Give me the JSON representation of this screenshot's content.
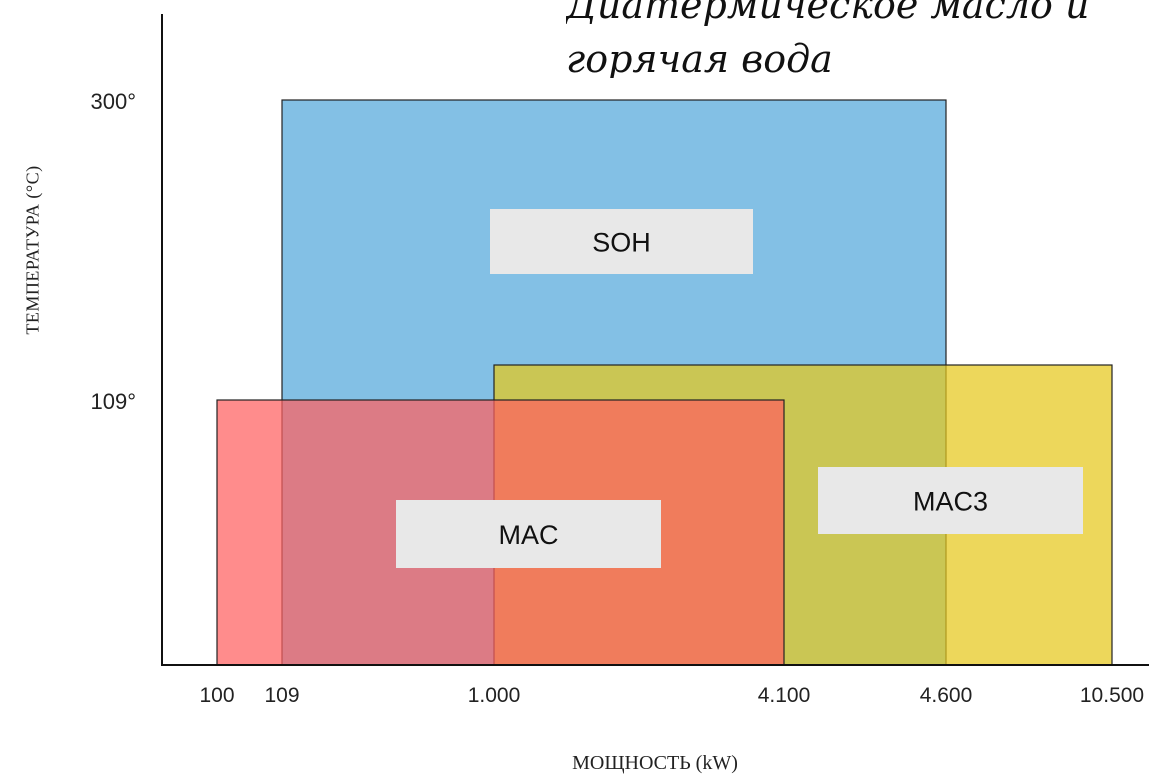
{
  "chart_data": {
    "type": "range-area",
    "title": "Диатермическое масло и горячая вода",
    "xlabel": "МОЩНОСТЬ (kW)",
    "ylabel": "ТЕМПЕРАТУРА (°C)",
    "x_ticks": [
      "100",
      "109",
      "1.000",
      "4.100",
      "4.600",
      "10.500"
    ],
    "y_ticks": [
      "300°",
      "109°"
    ],
    "series": [
      {
        "name": "SOH",
        "x_range": [
          "109",
          "4.600"
        ],
        "y_max": 300,
        "color": "#72b7e1"
      },
      {
        "name": "MAC3",
        "x_range": [
          "1.000",
          "10.500"
        ],
        "y_max": 120,
        "color": "#e6c81c"
      },
      {
        "name": "MAC",
        "x_range": [
          "100",
          "4.100"
        ],
        "y_max": 109,
        "color": "#ff5f5f"
      }
    ],
    "label_box_color": "#e8e8e8"
  }
}
